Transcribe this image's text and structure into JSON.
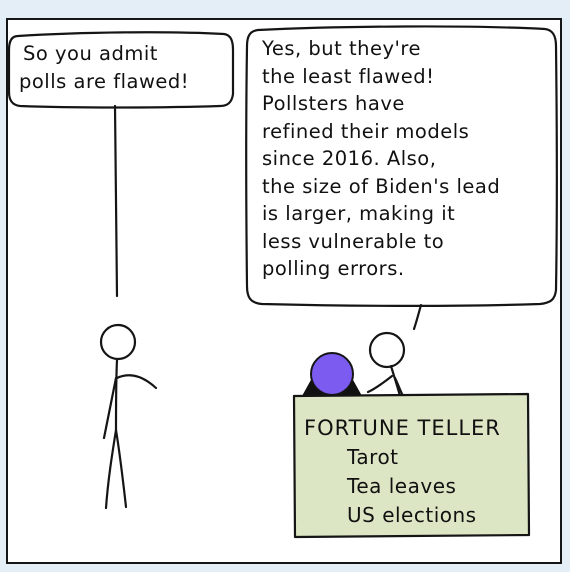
{
  "left_bubble": {
    "lines": [
      "So you admit",
      "polls are flawed!"
    ]
  },
  "right_bubble": {
    "lines": [
      "Yes, but they're",
      "the least flawed!",
      "Pollsters have",
      "refined their models",
      "since 2016. Also,",
      "the size of Biden's lead",
      "is larger, making it",
      "less vulnerable to",
      "polling errors."
    ]
  },
  "sign": {
    "title": "FORTUNE TELLER",
    "items": [
      "Tarot",
      "Tea leaves",
      "US elections"
    ]
  },
  "colors": {
    "page_background": "#e3eef6",
    "sign_fill": "#dde6c4",
    "crystal_ball": "#7b5bf0",
    "ink": "#151515"
  }
}
